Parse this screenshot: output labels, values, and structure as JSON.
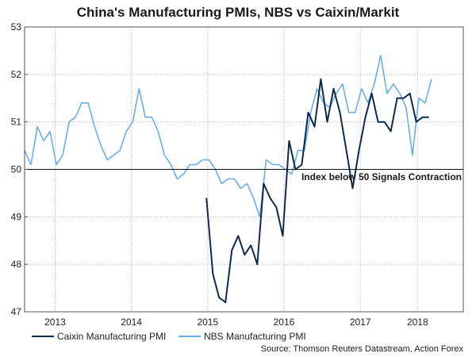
{
  "chart_data": {
    "type": "line",
    "title": "China's Manufacturing PMIs, NBS vs Caixin/Markit",
    "ylim": [
      47,
      53
    ],
    "yticks": [
      47,
      48,
      49,
      50,
      51,
      52,
      53
    ],
    "xlim": [
      2012.6,
      2018.35
    ],
    "xtick_labels": [
      {
        "label": "2013",
        "pos": 2013.0
      },
      {
        "label": "2014",
        "pos": 2014.0
      },
      {
        "label": "2015",
        "pos": 2015.0
      },
      {
        "label": "2016",
        "pos": 2016.0
      },
      {
        "label": "2017",
        "pos": 2017.0
      },
      {
        "label": "2018",
        "pos": 2017.75
      }
    ],
    "grid": true,
    "reference_line": {
      "y": 50,
      "label": "Index below 50 Signals Contraction"
    },
    "legend_position": "bottom",
    "series": [
      {
        "name": "Caixin Manufacturing PMI",
        "color": "#0d2b52",
        "x": [
          2014.983,
          2015.067,
          2015.15,
          2015.233,
          2015.317,
          2015.4,
          2015.483,
          2015.567,
          2015.65,
          2015.733,
          2015.817,
          2015.9,
          2015.983,
          2016.067,
          2016.15,
          2016.233,
          2016.317,
          2016.4,
          2016.483,
          2016.567,
          2016.65,
          2016.733,
          2016.817,
          2016.9,
          2016.983,
          2017.067,
          2017.15,
          2017.233,
          2017.317,
          2017.4,
          2017.483,
          2017.567,
          2017.65,
          2017.733,
          2017.817,
          2017.9
        ],
        "values": [
          49.4,
          47.8,
          47.3,
          47.2,
          48.3,
          48.6,
          48.2,
          48.4,
          48.0,
          49.7,
          49.4,
          49.2,
          48.6,
          50.6,
          50.0,
          50.1,
          51.2,
          50.9,
          51.9,
          51.0,
          51.7,
          51.2,
          50.4,
          49.6,
          50.4,
          51.1,
          51.6,
          51.0,
          51.0,
          50.8,
          51.5,
          51.5,
          51.6,
          51.0,
          51.1,
          51.1
        ]
      },
      {
        "name": "NBS Manufacturing PMI",
        "color": "#6aaee8",
        "x": [
          2012.6,
          2012.683,
          2012.767,
          2012.85,
          2012.933,
          2013.017,
          2013.1,
          2013.183,
          2013.267,
          2013.35,
          2013.433,
          2013.517,
          2013.6,
          2013.683,
          2013.767,
          2013.85,
          2013.933,
          2014.017,
          2014.1,
          2014.183,
          2014.267,
          2014.35,
          2014.433,
          2014.517,
          2014.6,
          2014.683,
          2014.767,
          2014.85,
          2014.933,
          2015.017,
          2015.1,
          2015.183,
          2015.267,
          2015.35,
          2015.433,
          2015.517,
          2015.6,
          2015.683,
          2015.767,
          2015.85,
          2015.933,
          2016.017,
          2016.1,
          2016.183,
          2016.267,
          2016.35,
          2016.433,
          2016.517,
          2016.6,
          2016.683,
          2016.767,
          2016.85,
          2016.933,
          2017.017,
          2017.1,
          2017.183,
          2017.267,
          2017.35,
          2017.433,
          2017.517,
          2017.6,
          2017.683,
          2017.767,
          2017.85,
          2017.933
        ],
        "values": [
          50.4,
          50.1,
          50.9,
          50.6,
          50.8,
          50.1,
          50.3,
          51.0,
          51.1,
          51.4,
          51.4,
          50.9,
          50.5,
          50.2,
          50.3,
          50.4,
          50.8,
          51.0,
          51.7,
          51.1,
          51.1,
          50.8,
          50.3,
          50.1,
          49.8,
          49.9,
          50.1,
          50.1,
          50.2,
          50.2,
          50.0,
          49.7,
          49.8,
          49.8,
          49.6,
          49.7,
          49.4,
          49.0,
          50.2,
          50.1,
          50.1,
          50.0,
          49.9,
          50.4,
          50.4,
          51.2,
          51.7,
          51.4,
          51.3,
          51.6,
          51.8,
          51.2,
          51.2,
          51.7,
          51.4,
          51.8,
          52.4,
          51.6,
          51.8,
          51.6,
          51.3,
          50.3,
          51.5,
          51.4,
          51.9
        ]
      }
    ]
  },
  "legend": {
    "items": [
      {
        "label": "Caixin Manufacturing PMI",
        "color": "#0d2b52"
      },
      {
        "label": "NBS Manufacturing PMI",
        "color": "#6aaee8"
      }
    ]
  },
  "source": "Source: Thomson Reuters Datastream, Action Forex"
}
